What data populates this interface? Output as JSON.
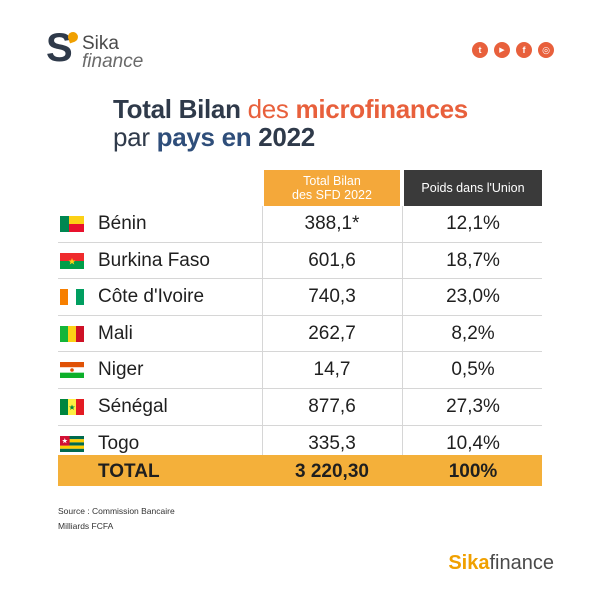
{
  "logo": {
    "s": "S",
    "sika": "Sika",
    "finance": "finance"
  },
  "socials": [
    {
      "name": "twitter-icon",
      "glyph": "t"
    },
    {
      "name": "youtube-icon",
      "glyph": "▶"
    },
    {
      "name": "facebook-icon",
      "glyph": "f"
    },
    {
      "name": "instagram-icon",
      "glyph": "◎"
    }
  ],
  "title": {
    "part1": "Total Bilan ",
    "part2": "des ",
    "part3": "microfinances",
    "part4": "par ",
    "part5": "pays en ",
    "part6": "2022"
  },
  "table": {
    "header_total": "Total Bilan des SFD 2022",
    "header_total_line1": "Total Bilan",
    "header_total_line2": "des SFD 2022",
    "header_poids": "Poids dans l'Union",
    "rows": [
      {
        "country": "Bénin",
        "total": "388,1*",
        "poids": "12,1%",
        "flag": "benin-flag"
      },
      {
        "country": "Burkina Faso",
        "total": "601,6",
        "poids": "18,7%",
        "flag": "burkina-faso-flag"
      },
      {
        "country": "Côte d'Ivoire",
        "total": "740,3",
        "poids": "23,0%",
        "flag": "cote-divoire-flag"
      },
      {
        "country": "Mali",
        "total": "262,7",
        "poids": "8,2%",
        "flag": "mali-flag"
      },
      {
        "country": "Niger",
        "total": "14,7",
        "poids": "0,5%",
        "flag": "niger-flag"
      },
      {
        "country": "Sénégal",
        "total": "877,6",
        "poids": "27,3%",
        "flag": "senegal-flag"
      },
      {
        "country": "Togo",
        "total": "335,3",
        "poids": "10,4%",
        "flag": "togo-flag"
      }
    ],
    "total_row": {
      "label": "TOTAL",
      "total": "3 220,30",
      "poids": "100%"
    }
  },
  "source": {
    "line1": "Source : Commission Bancaire",
    "line2": "Milliards FCFA"
  },
  "brand": {
    "part1": "Sika",
    "part2": "finance"
  },
  "colors": {
    "orange": "#e8603c",
    "gold": "#f4b03a",
    "navy": "#2f3a4a",
    "dark_header": "#3a3a3a"
  }
}
